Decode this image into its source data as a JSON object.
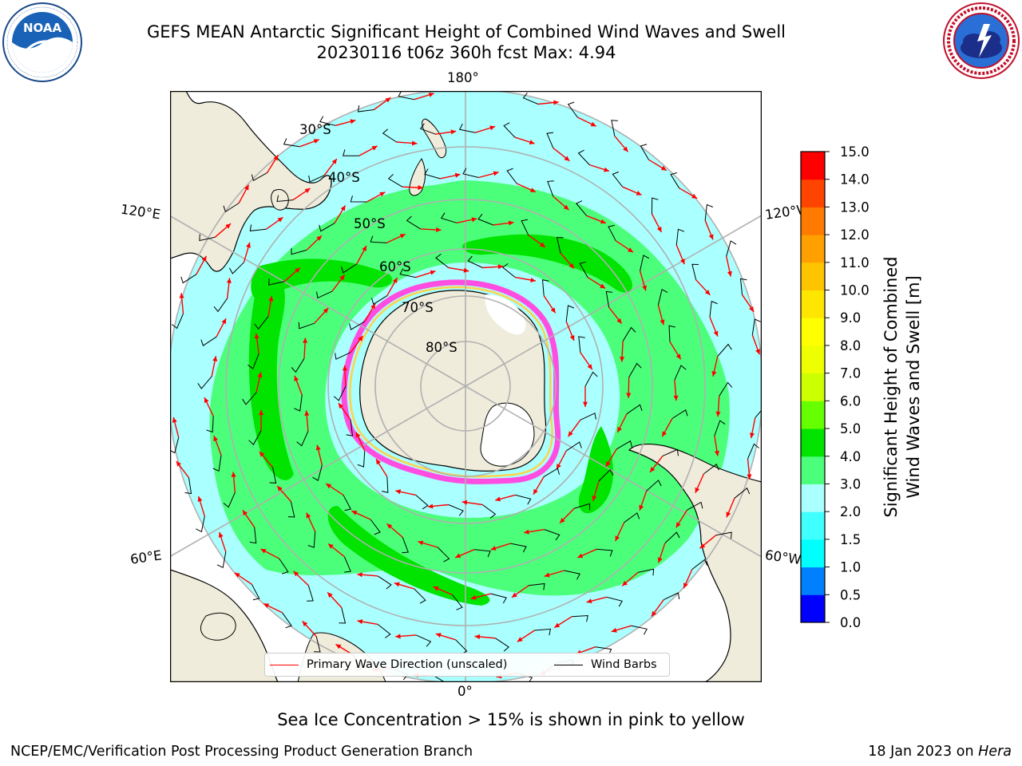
{
  "header": {
    "title_line1": "GEFS MEAN Antarctic Significant Height of Combined Wind Waves and Swell",
    "title_line2": "20230116 t06z 360h fcst   Max: 4.94"
  },
  "logos": {
    "left": {
      "name": "noaa-logo-icon",
      "text": "NOAA",
      "ring_text": "NATIONAL OCEANIC AND ATMOSPHERIC ADMINISTRATION · U.S. DEPARTMENT OF COMMERCE"
    },
    "right": {
      "name": "nws-logo-icon",
      "ring_text": "NATIONAL WEATHER SERVICE"
    }
  },
  "map": {
    "projection": "south-polar-stereographic",
    "longitude_labels": {
      "top": "180°",
      "bottom": "0°",
      "upper_left": "120°E",
      "upper_right": "120°W",
      "lower_left": "60°E",
      "lower_right": "60°W"
    },
    "latitude_labels": [
      "30°S",
      "40°S",
      "50°S",
      "60°S",
      "70°S",
      "80°S"
    ],
    "colors": {
      "land": "#efecdb",
      "ice_pink": "#ff4de1",
      "ice_yellow": "#ffd24a",
      "ice_white": "#ffffff",
      "grid": "#b0b0b0"
    }
  },
  "colorbar": {
    "label_line1": "Significant Height of Combined",
    "label_line2": "Wind Waves and Swell [m]",
    "ticks": [
      "0.0",
      "0.5",
      "1.0",
      "1.5",
      "2.0",
      "3.0",
      "4.0",
      "5.0",
      "6.0",
      "7.0",
      "8.0",
      "9.0",
      "10.0",
      "11.0",
      "12.0",
      "13.0",
      "14.0",
      "15.0"
    ],
    "colors": [
      "#0000ff",
      "#0080ff",
      "#00ffff",
      "#40ffff",
      "#aaffff",
      "#4cff7a",
      "#00e400",
      "#66ff00",
      "#ccff00",
      "#eeff00",
      "#ffff00",
      "#ffe600",
      "#ffc400",
      "#ffa000",
      "#ff7a00",
      "#ff4400",
      "#ff0000"
    ]
  },
  "legend": {
    "wave_direction": "Primary Wave Direction (unscaled)",
    "wind_barbs": "Wind Barbs",
    "wave_color": "#ff0000",
    "barb_color": "#000000"
  },
  "caption": "Sea Ice Concentration > 15% is shown in pink to yellow",
  "footer": {
    "left": "NCEP/EMC/Verification Post Processing Product Generation Branch",
    "date": "18 Jan 2023 on",
    "machine": "Hera"
  }
}
